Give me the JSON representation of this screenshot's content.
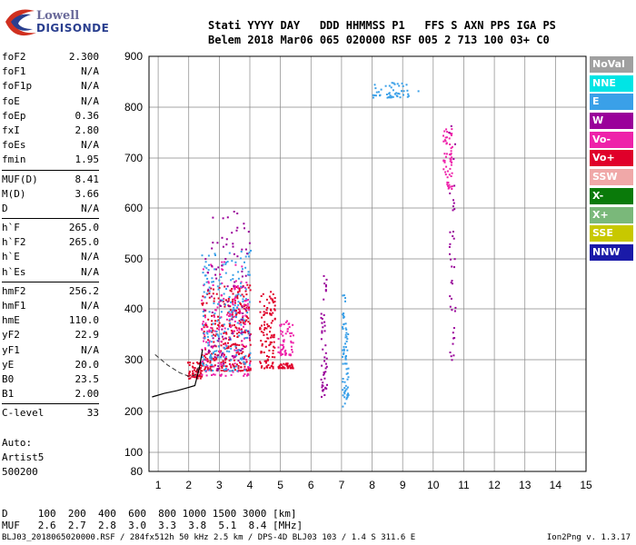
{
  "logo": {
    "line1": "Lowell",
    "line2": "DIGISONDE"
  },
  "header": {
    "line1": "Stati YYYY DAY   DDD HHMMSS P1   FFS S AXN PPS IGA PS",
    "line2": "Belem 2018 Mar06 065 020000 RSF 005 2 713 100 03+ C0"
  },
  "params": {
    "group1": [
      {
        "k": "foF2",
        "v": "2.300"
      },
      {
        "k": "foF1",
        "v": "N/A"
      },
      {
        "k": "foF1p",
        "v": "N/A"
      },
      {
        "k": "foE",
        "v": "N/A"
      },
      {
        "k": "foEp",
        "v": "0.36"
      },
      {
        "k": "fxI",
        "v": "2.80"
      },
      {
        "k": "foEs",
        "v": "N/A"
      },
      {
        "k": "fmin",
        "v": "1.95"
      }
    ],
    "group2": [
      {
        "k": "MUF(D)",
        "v": "8.41"
      },
      {
        "k": "M(D)",
        "v": "3.66"
      },
      {
        "k": "D",
        "v": "N/A"
      }
    ],
    "group3": [
      {
        "k": "h`F",
        "v": "265.0"
      },
      {
        "k": "h`F2",
        "v": "265.0"
      },
      {
        "k": "h`E",
        "v": "N/A"
      },
      {
        "k": "h`Es",
        "v": "N/A"
      }
    ],
    "group4": [
      {
        "k": "hmF2",
        "v": "256.2"
      },
      {
        "k": "hmF1",
        "v": "N/A"
      },
      {
        "k": "hmE",
        "v": "110.0"
      },
      {
        "k": "yF2",
        "v": "22.9"
      },
      {
        "k": "yF1",
        "v": "N/A"
      },
      {
        "k": "yE",
        "v": "20.0"
      },
      {
        "k": "B0",
        "v": "23.5"
      },
      {
        "k": "B1",
        "v": "2.00"
      }
    ],
    "group5": [
      {
        "k": "C-level",
        "v": "33"
      }
    ]
  },
  "auto": {
    "line1": "Auto:",
    "line2": "Artist5",
    "line3": "500200"
  },
  "dmuf": {
    "d_row": "D     100  200  400  600  800 1000 1500 3000 [km]",
    "muf_row": "MUF   2.6  2.7  2.8  3.0  3.3  3.8  5.1  8.4 [MHz]"
  },
  "footer": {
    "left": "BLJ03_2018065020000.RSF / 284fx512h 50 kHz 2.5 km / DPS-4D BLJ03 103 / 1.4 S 311.6 E",
    "right": "Ion2Png v. 1.3.17"
  },
  "legend": [
    {
      "label": "NoVal",
      "color": "#a0a0a0"
    },
    {
      "label": "NNE",
      "color": "#00e5e5"
    },
    {
      "label": "E",
      "color": "#3aa0e8"
    },
    {
      "label": "W",
      "color": "#9a009a"
    },
    {
      "label": "Vo-",
      "color": "#ee22aa"
    },
    {
      "label": "Vo+",
      "color": "#e0002a"
    },
    {
      "label": "SSW",
      "color": "#f0a8a8"
    },
    {
      "label": "X-",
      "color": "#0a7a0a"
    },
    {
      "label": "X+",
      "color": "#7ab87a"
    },
    {
      "label": "SSE",
      "color": "#c8c800"
    },
    {
      "label": "NNW",
      "color": "#1a1aa8"
    }
  ],
  "chart_data": {
    "type": "scatter",
    "xlim": [
      0.7,
      15
    ],
    "ylim": [
      80,
      905
    ],
    "x_ticks": [
      1,
      2,
      3,
      4,
      5,
      6,
      7,
      8,
      9,
      10,
      11,
      12,
      13,
      14,
      15
    ],
    "y_ticks": [
      80,
      100,
      200,
      300,
      400,
      500,
      600,
      700,
      800,
      900
    ],
    "y_scale": "log-like ionogram virtual height",
    "grid": true,
    "legend_position": "right",
    "clusters": [
      {
        "name": "Vo+",
        "x": [
          1.95,
          2.4
        ],
        "y": [
          265,
          300
        ],
        "count": 60
      },
      {
        "name": "Vo+",
        "x": [
          2.4,
          4.0
        ],
        "y": [
          280,
          450
        ],
        "count": 320
      },
      {
        "name": "Vo-",
        "x": [
          2.4,
          4.0
        ],
        "y": [
          270,
          500
        ],
        "count": 160
      },
      {
        "name": "E",
        "x": [
          2.4,
          4.0
        ],
        "y": [
          280,
          520
        ],
        "count": 200
      },
      {
        "name": "W",
        "x": [
          2.5,
          4.0
        ],
        "y": [
          280,
          600
        ],
        "count": 90
      },
      {
        "name": "Vo+",
        "x": [
          4.3,
          4.8
        ],
        "y": [
          285,
          440
        ],
        "count": 110
      },
      {
        "name": "Vo-",
        "x": [
          4.9,
          5.4
        ],
        "y": [
          310,
          380
        ],
        "count": 60
      },
      {
        "name": "Vo+",
        "x": [
          4.9,
          5.4
        ],
        "y": [
          285,
          295
        ],
        "count": 40
      },
      {
        "name": "W",
        "x": [
          6.3,
          6.5
        ],
        "y": [
          230,
          470
        ],
        "count": 50
      },
      {
        "name": "E",
        "x": [
          7.0,
          7.2
        ],
        "y": [
          210,
          430
        ],
        "count": 70
      },
      {
        "name": "Vo-",
        "x": [
          10.3,
          10.6
        ],
        "y": [
          640,
          760
        ],
        "count": 60
      },
      {
        "name": "E",
        "x": [
          8.0,
          9.5
        ],
        "y": [
          820,
          850
        ],
        "count": 50
      },
      {
        "name": "W",
        "x": [
          10.5,
          10.7
        ],
        "y": [
          300,
          800
        ],
        "count": 40
      }
    ],
    "trace_dashed": {
      "x": [
        0.9,
        1.3,
        1.7,
        2.0,
        2.2,
        2.35
      ],
      "y": [
        310,
        290,
        275,
        268,
        270,
        290
      ]
    },
    "trace_solid": {
      "x": [
        0.8,
        1.2,
        1.6,
        1.9,
        2.2,
        2.35,
        2.45
      ],
      "y": [
        228,
        235,
        240,
        245,
        250,
        285,
        320
      ]
    }
  }
}
